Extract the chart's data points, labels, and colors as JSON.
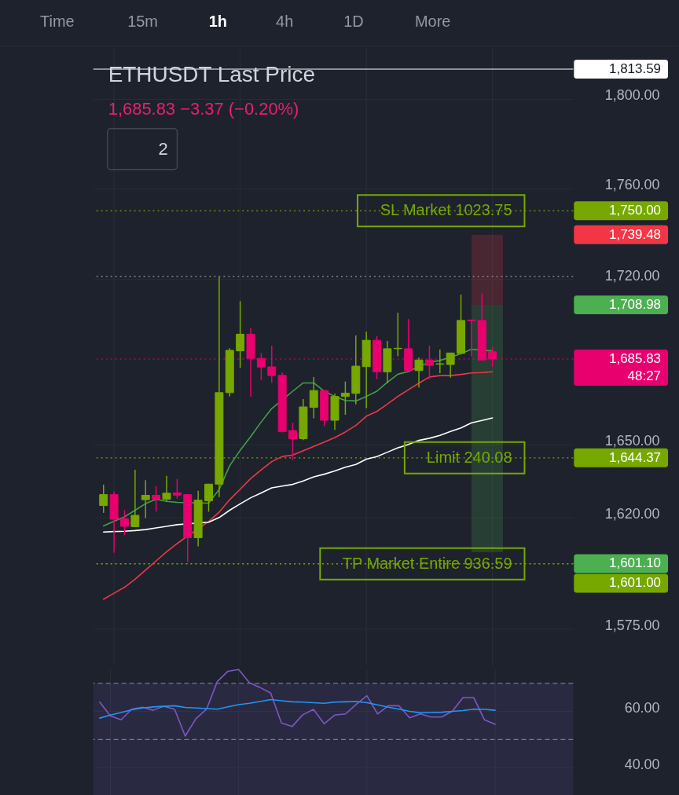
{
  "chart_data": [
    {
      "type": "candlestick",
      "title": "ETHUSDT Last Price",
      "subtitle": "1,685.83 −3.37 (−0.20%)",
      "categories": [
        null,
        null,
        null,
        null,
        null,
        null,
        null,
        null,
        null,
        null,
        null,
        null,
        null,
        null,
        null,
        null,
        null,
        null,
        null,
        null,
        null,
        null,
        null,
        null,
        null,
        null,
        null,
        null,
        null,
        null,
        null,
        null,
        null,
        null,
        null,
        null,
        null,
        null
      ],
      "ohlc": [
        [
          1624.7,
          1633.3,
          1621.7,
          1629.2
        ],
        [
          1629.2,
          1630.5,
          1605.5,
          1619.1
        ],
        [
          1619.3,
          1622.8,
          1612.7,
          1616.2
        ],
        [
          1616.1,
          1639.4,
          1615.9,
          1620.7
        ],
        [
          1627.1,
          1635.1,
          1619.6,
          1628.9
        ],
        [
          1628.9,
          1632.6,
          1622.2,
          1627.4
        ],
        [
          1627.3,
          1636.9,
          1626.2,
          1629.8
        ],
        [
          1629.9,
          1635.6,
          1627.6,
          1629.0
        ],
        [
          1629.2,
          1629.4,
          1601.8,
          1611.6
        ],
        [
          1611.6,
          1630.8,
          1608.1,
          1626.9
        ],
        [
          1626.7,
          1633.5,
          1622.2,
          1633.5
        ],
        [
          1633.5,
          1721.1,
          1628.2,
          1671.6
        ],
        [
          1671.6,
          1690.4,
          1670.0,
          1689.5
        ],
        [
          1689.3,
          1710.6,
          1682.1,
          1696.4
        ],
        [
          1696.4,
          1699.1,
          1670.0,
          1686.1
        ],
        [
          1686.1,
          1688.4,
          1676.9,
          1682.4
        ],
        [
          1682.5,
          1691.5,
          1675.8,
          1678.8
        ],
        [
          1678.9,
          1680.1,
          1654.9,
          1655.3
        ],
        [
          1655.7,
          1659.0,
          1643.5,
          1652.3
        ],
        [
          1652.3,
          1668.9,
          1651.7,
          1665.6
        ],
        [
          1665.4,
          1678.2,
          1660.8,
          1672.5
        ],
        [
          1672.5,
          1672.5,
          1657.5,
          1660.0
        ],
        [
          1660.0,
          1671.2,
          1656.0,
          1670.0
        ],
        [
          1670.0,
          1676.3,
          1662.3,
          1671.4
        ],
        [
          1671.3,
          1695.9,
          1666.7,
          1682.8
        ],
        [
          1682.6,
          1697.5,
          1665.0,
          1693.8
        ],
        [
          1693.8,
          1695.6,
          1677.3,
          1680.4
        ],
        [
          1680.4,
          1693.5,
          1675.5,
          1690.2
        ],
        [
          1690.2,
          1705.6,
          1687.0,
          1690.4
        ],
        [
          1690.2,
          1702.9,
          1680.9,
          1680.9
        ],
        [
          1680.9,
          1686.5,
          1673.8,
          1685.4
        ],
        [
          1685.4,
          1691.5,
          1677.3,
          1683.1
        ],
        [
          1683.6,
          1689.8,
          1679.8,
          1683.8
        ],
        [
          1683.5,
          1688.4,
          1677.9,
          1688.4
        ],
        [
          1688.2,
          1713.4,
          1688.2,
          1702.3
        ],
        [
          1702.5,
          1702.6,
          1687.0,
          1702.2
        ],
        [
          1702.3,
          1714.0,
          1685.4,
          1685.4
        ],
        [
          1688.9,
          1690.9,
          1682.6,
          1685.83
        ]
      ],
      "colors": [
        "#76a800",
        "#e8006f",
        "#e8006f",
        "#76a800",
        "#76a800",
        "#e8006f",
        "#76a800",
        "#e8006f",
        "#e8006f",
        "#76a800",
        "#76a800",
        "#76a800",
        "#76a800",
        "#76a800",
        "#e8006f",
        "#e8006f",
        "#e8006f",
        "#e8006f",
        "#e8006f",
        "#76a800",
        "#76a800",
        "#e8006f",
        "#76a800",
        "#76a800",
        "#76a800",
        "#76a800",
        "#e8006f",
        "#76a800",
        "#76a800",
        "#e8006f",
        "#76a800",
        "#e8006f",
        "#76a800",
        "#76a800",
        "#76a800",
        "#e8006f",
        "#e8006f",
        "#e8006f"
      ],
      "series": [
        {
          "type": "line",
          "color": "#43a047",
          "values": [
            1616.4,
            1618.3,
            1620.1,
            1622.8,
            1625.5,
            1627.3,
            1626.4,
            1626.0,
            null,
            null,
            1625.7,
            1631.3,
            1641.1,
            1647.5,
            1653.2,
            1659.3,
            1664.9,
            null,
            1672.2,
            1675.7,
            1675.7,
            1672.2,
            1670.0,
            1668.3,
            1668.1,
            1670.0,
            1672.2,
            1676.0,
            1679.4,
            1680.5,
            1682.7,
            1684.4,
            1685.2,
            1686.6,
            1688.1,
            1690.0,
            null,
            1689.2
          ]
        },
        {
          "type": "line",
          "color": "#f23645",
          "values": [
            1586.8,
            1589.2,
            1591.6,
            1594.8,
            1598.5,
            1602.2,
            1605.9,
            1609.2,
            1612.3,
            null,
            1618.2,
            1622.0,
            1627.1,
            1631.4,
            1635.8,
            1639.4,
            1642.8,
            1644.9,
            1645.5,
            1647.3,
            1649.1,
            1650.9,
            1652.8,
            1655.1,
            1657.8,
            1661.7,
            1663.7,
            1666.8,
            1670.0,
            1672.8,
            1675.6,
            1678.2,
            1678.8,
            1678.8,
            1679.3,
            1679.9,
            1680.1,
            1680.4
          ]
        },
        {
          "type": "line",
          "color": "#ffffff",
          "values": [
            1613.9,
            1614.1,
            1614.2,
            1614.5,
            1614.9,
            1615.6,
            1616.2,
            1616.9,
            null,
            null,
            1617.9,
            1619.8,
            1622.8,
            1625.4,
            1627.9,
            1629.9,
            1632.0,
            1632.7,
            1633.4,
            1634.8,
            1636.5,
            1637.6,
            1638.9,
            1640.5,
            1641.6,
            1643.8,
            1644.9,
            1646.7,
            1648.5,
            1649.9,
            1651.6,
            1652.5,
            1653.7,
            1655.3,
            1656.8,
            1658.9,
            1659.9,
            1661.0
          ]
        }
      ],
      "ylim": [
        1560.5,
        1823.3
      ],
      "log": true,
      "yticks": [
        {
          "value": 1800,
          "label": "1,800.00"
        },
        {
          "value": 1760,
          "label": "1,760.00"
        },
        {
          "value": 1720,
          "label": "1,720.00"
        },
        {
          "value": 1650,
          "label": "1,650.00"
        },
        {
          "value": 1620,
          "label": "1,620.00"
        },
        {
          "value": 1575,
          "label": "1,575.00"
        }
      ],
      "grid": true,
      "tick_labels": "y",
      "ref_lines": [
        {
          "axis": "y",
          "value": 1813.59,
          "label": "1,813.59",
          "color": "#ffffff",
          "line_style": "solid"
        },
        {
          "axis": "y",
          "value": 1750,
          "label": "1,750.00",
          "color": "#76a800",
          "line_style": "dotted"
        },
        {
          "axis": "y",
          "value": 1721.3,
          "color": "#9598a1",
          "line_style": "dotted"
        },
        {
          "axis": "y",
          "value": 1685.83,
          "label": "1,685.83\n48:27",
          "color": "#e8006f",
          "line_style": "dotted"
        },
        {
          "axis": "y",
          "value": 1644.37,
          "label": "1,644.37",
          "color": "#76a800",
          "line_style": "dotted"
        },
        {
          "axis": "y",
          "value": 1601.1,
          "label": "1,601.10",
          "color": "#4caf50",
          "line_style": "dotted"
        },
        {
          "axis": "y",
          "value": 1601,
          "label": "1,601.00",
          "color": "#76a800",
          "line_style": "dotted"
        }
      ],
      "bands": [
        {
          "axis": "y",
          "from": 1739.48,
          "to": 1708.98,
          "color": "#f23645"
        },
        {
          "axis": "y",
          "from": 1708.98,
          "to": 1605.7,
          "color": "#4caf50"
        }
      ],
      "annotations": [
        "Time",
        "15m",
        "1h",
        "4h",
        "1D",
        "More",
        "2",
        "1,739.48",
        "1,708.98",
        {
          "text": "SL Market 1023.75",
          "y": 1750
        },
        {
          "text": "Limit 240.08",
          "y": 1644.37
        },
        {
          "text": "TP Market Entire 936.59",
          "y": 1601
        }
      ]
    },
    {
      "type": "line",
      "categories": [
        null,
        null,
        null,
        null,
        null,
        null,
        null,
        null,
        null,
        null,
        null,
        null,
        null,
        null,
        null,
        null,
        null,
        null,
        null,
        null,
        null,
        null,
        null,
        null,
        null,
        null,
        null,
        null,
        null,
        null,
        null,
        null,
        null,
        null,
        null,
        null,
        null,
        null
      ],
      "series": [
        {
          "color": "#7e57c2",
          "values": [
            63.3,
            58.4,
            57.0,
            60.8,
            61.5,
            60.4,
            61.8,
            60.8,
            51.2,
            57.4,
            60.8,
            70.6,
            74.3,
            74.9,
            70.2,
            68.5,
            66.5,
            55.9,
            54.6,
            58.8,
            60.7,
            55.6,
            58.7,
            59.1,
            62.5,
            65.6,
            59.1,
            62.0,
            62.0,
            57.7,
            59.1,
            58.0,
            58.0,
            60.1,
            64.9,
            64.9,
            57.0,
            55.4
          ]
        },
        {
          "color": "#2196f3",
          "values": [
            57.6,
            58.7,
            59.6,
            60.6,
            61.2,
            61.6,
            61.8,
            62.0,
            61.4,
            61.2,
            61.0,
            60.8,
            61.6,
            62.4,
            62.9,
            63.5,
            64.2,
            63.8,
            63.4,
            63.3,
            63.1,
            62.9,
            63.3,
            63.4,
            63.5,
            63.1,
            62.3,
            61.5,
            60.8,
            60.0,
            59.5,
            59.6,
            59.7,
            60.0,
            60.3,
            60.8,
            60.7,
            60.4
          ]
        }
      ],
      "ylim": [
        30,
        75.2
      ],
      "yticks": [
        {
          "value": 60,
          "label": "60.00"
        },
        {
          "value": 40,
          "label": "40.00"
        }
      ],
      "grid": true,
      "tick_labels": "y",
      "ref_lines": [
        {
          "axis": "y",
          "value": 70,
          "color": "#787b86",
          "line_style": "dashed"
        },
        {
          "axis": "y",
          "value": 50,
          "color": "#787b86",
          "line_style": "dashed"
        }
      ],
      "bands": [
        {
          "axis": "y",
          "from": 30,
          "to": 70,
          "color": "#5a4596"
        }
      ]
    }
  ]
}
